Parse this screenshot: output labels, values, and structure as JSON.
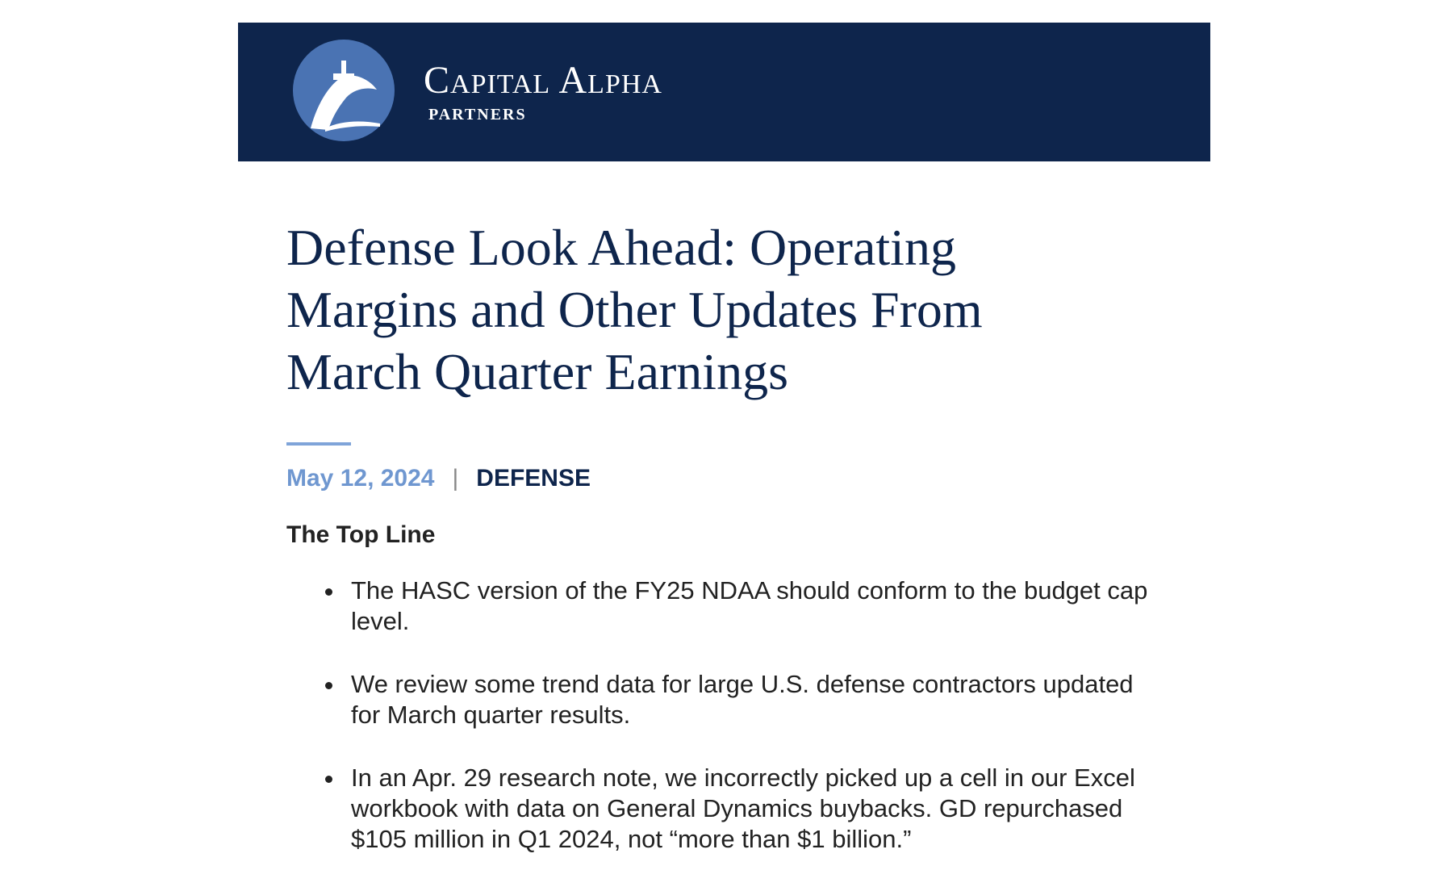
{
  "header": {
    "brand": "Capital Alpha",
    "brand_sub": "Partners"
  },
  "article": {
    "title": "Defense Look Ahead: Operating Margins and Other Updates From March Quarter Earnings",
    "date": "May 12, 2024",
    "separator": "|",
    "category": "DEFENSE",
    "section_heading": "The Top Line",
    "bullets": [
      "The HASC version of the FY25 NDAA should conform to the budget cap level.",
      "We review some trend data for large U.S. defense contractors updated for March quarter results.",
      "In an Apr. 29 research note, we incorrectly picked up a cell in our Excel workbook with data on General Dynamics buybacks. GD repurchased $105 million in Q1 2024, not “more than $1 billion.”"
    ]
  }
}
